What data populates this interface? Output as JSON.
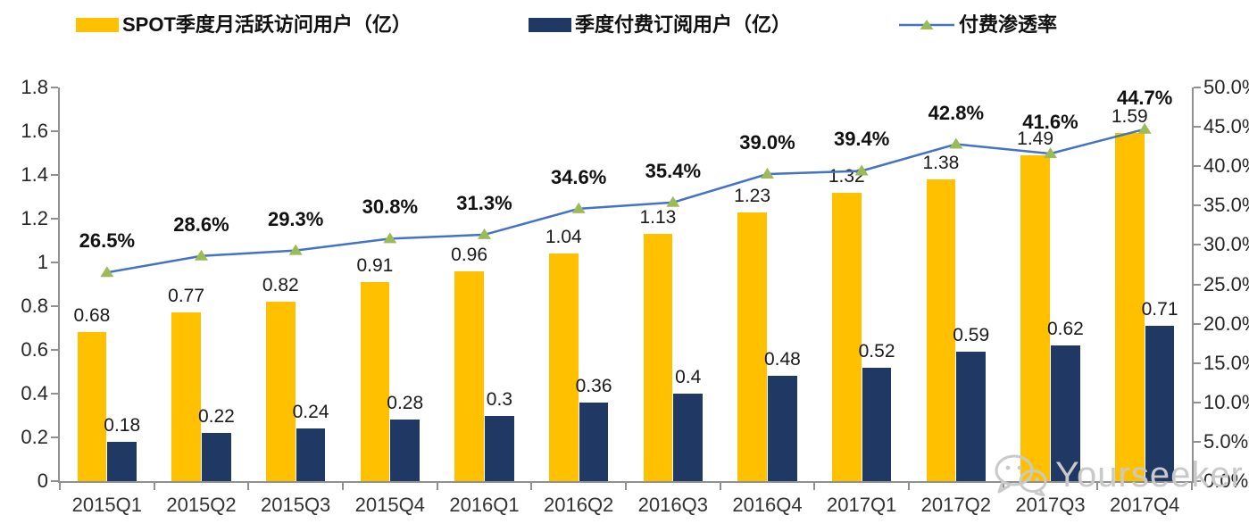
{
  "legend_position": "top",
  "chart_data": {
    "type": "combo",
    "categories": [
      "2015Q1",
      "2015Q2",
      "2015Q3",
      "2015Q4",
      "2016Q1",
      "2016Q2",
      "2016Q3",
      "2016Q4",
      "2017Q1",
      "2017Q2",
      "2017Q3",
      "2017Q4"
    ],
    "series": [
      {
        "name": "SPOT季度月活跃访问用户（亿）",
        "type": "bar",
        "axis": "left",
        "color": "#FFC000",
        "values": [
          0.68,
          0.77,
          0.82,
          0.91,
          0.96,
          1.04,
          1.13,
          1.23,
          1.32,
          1.38,
          1.49,
          1.59
        ],
        "labels": [
          "0.68",
          "0.77",
          "0.82",
          "0.91",
          "0.96",
          "1.04",
          "1.13",
          "1.23",
          "1.32",
          "1.38",
          "1.49",
          "1.59"
        ]
      },
      {
        "name": "季度付费订阅用户（亿）",
        "type": "bar",
        "axis": "left",
        "color": "#1F3864",
        "values": [
          0.18,
          0.22,
          0.24,
          0.28,
          0.3,
          0.36,
          0.4,
          0.48,
          0.52,
          0.59,
          0.62,
          0.71
        ],
        "labels": [
          "0.18",
          "0.22",
          "0.24",
          "0.28",
          "0.3",
          "0.36",
          "0.4",
          "0.48",
          "0.52",
          "0.59",
          "0.62",
          "0.71"
        ]
      },
      {
        "name": "付费渗透率",
        "type": "line",
        "axis": "right",
        "color": "#4472C4",
        "marker": "triangle",
        "marker_color": "#9BBB59",
        "values": [
          26.5,
          28.6,
          29.3,
          30.8,
          31.3,
          34.6,
          35.4,
          39.0,
          39.4,
          42.8,
          41.6,
          44.7
        ],
        "labels": [
          "26.5%",
          "28.6%",
          "29.3%",
          "30.8%",
          "31.3%",
          "34.6%",
          "35.4%",
          "39.0%",
          "39.4%",
          "42.8%",
          "41.6%",
          "44.7%"
        ]
      }
    ],
    "left_axis": {
      "min": 0,
      "max": 1.8,
      "step": 0.2,
      "ticks": [
        "1.8",
        "1.6",
        "1.4",
        "1.2",
        "1",
        "0.8",
        "0.6",
        "0.4",
        "0.2",
        "0"
      ]
    },
    "right_axis": {
      "min": 0,
      "max": 50,
      "step": 5,
      "ticks": [
        "50.0%",
        "45.0%",
        "40.0%",
        "35.0%",
        "30.0%",
        "25.0%",
        "20.0%",
        "15.0%",
        "10.0%",
        "5.0%",
        "0.0%"
      ]
    },
    "grid": false,
    "axis_color": "#909090"
  },
  "watermark": {
    "icon": "wechat-icon",
    "text": "Yourseeker",
    "color": "#c9c9c9"
  }
}
